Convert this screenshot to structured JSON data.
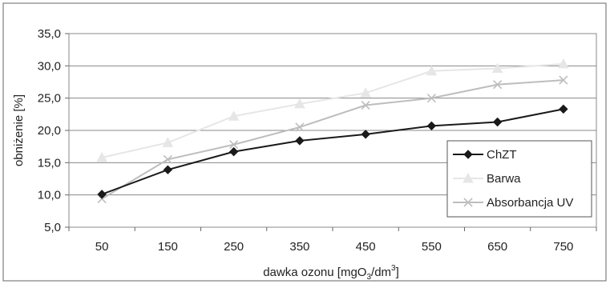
{
  "chart_data": {
    "type": "line",
    "title": "",
    "xlabel_main": "dawka ozonu [mgO",
    "xlabel_sub": "3",
    "xlabel_mid": "/dm",
    "xlabel_sup": "3",
    "xlabel_end": "]",
    "ylabel": "obniżenie [%]",
    "categories": [
      "50",
      "150",
      "250",
      "350",
      "450",
      "550",
      "650",
      "750"
    ],
    "y_ticks": [
      "5,0",
      "10,0",
      "15,0",
      "20,0",
      "25,0",
      "30,0",
      "35,0"
    ],
    "ylim": [
      5,
      35
    ],
    "grid": true,
    "legend_position": "right",
    "series": [
      {
        "name": "ChZT",
        "marker": "diamond",
        "color": "#1a1a1a",
        "values": [
          10.1,
          13.9,
          16.7,
          18.4,
          19.4,
          20.7,
          21.3,
          23.3
        ]
      },
      {
        "name": "Barwa",
        "marker": "triangle",
        "color": "#e6e6e6",
        "values": [
          15.8,
          18.1,
          22.2,
          24.1,
          25.8,
          29.2,
          29.6,
          30.3
        ]
      },
      {
        "name": "Absorbancja UV",
        "marker": "x",
        "color": "#bdbdbd",
        "values": [
          9.4,
          15.5,
          17.8,
          20.5,
          23.9,
          25.0,
          27.1,
          27.8
        ]
      }
    ]
  }
}
